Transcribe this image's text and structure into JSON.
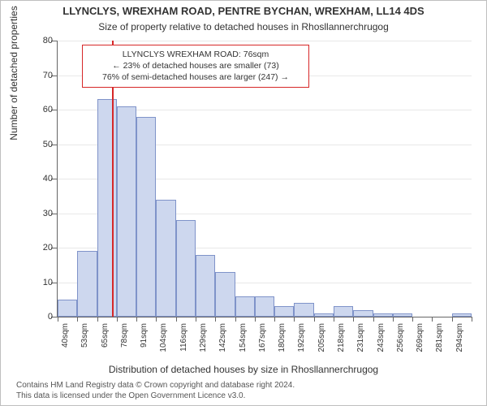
{
  "title": "LLYNCLYS, WREXHAM ROAD, PENTRE BYCHAN, WREXHAM, LL14 4DS",
  "subtitle": "Size of property relative to detached houses in Rhosllannerchrugog",
  "xlabel": "Distribution of detached houses by size in Rhosllannerchrugog",
  "ylabel": "Number of detached properties",
  "footer_line1": "Contains HM Land Registry data © Crown copyright and database right 2024.",
  "footer_line2": "This data is licensed under the Open Government Licence v3.0.",
  "chart": {
    "type": "histogram",
    "background_color": "#ffffff",
    "bar_fill": "#cdd7ee",
    "bar_edge": "#7f93c9",
    "grid_color": "#666666",
    "ref_line_color": "#d62728",
    "font_color": "#333333",
    "ylim": [
      0,
      80
    ],
    "ytick_step": 10,
    "bin_start": 40,
    "bin_width_sqm": 13,
    "n_bins": 21,
    "counts": [
      5,
      19,
      63,
      61,
      58,
      34,
      28,
      18,
      13,
      6,
      6,
      3,
      4,
      1,
      3,
      2,
      1,
      1,
      0,
      0,
      1
    ],
    "xtick_labels": [
      "40sqm",
      "53sqm",
      "65sqm",
      "78sqm",
      "91sqm",
      "104sqm",
      "116sqm",
      "129sqm",
      "142sqm",
      "154sqm",
      "167sqm",
      "180sqm",
      "192sqm",
      "205sqm",
      "218sqm",
      "231sqm",
      "243sqm",
      "256sqm",
      "269sqm",
      "281sqm",
      "294sqm"
    ],
    "ref_value_sqm": 76,
    "annotation": {
      "line1": "LLYNCLYS WREXHAM ROAD: 76sqm",
      "line2": "← 23% of detached houses are smaller (73)",
      "line3": "76% of semi-detached houses are larger (247) →"
    },
    "title_fontsize_pt": 13,
    "subtitle_fontsize_pt": 12,
    "axis_label_fontsize_pt": 12,
    "tick_fontsize_pt": 10,
    "annotation_fontsize_pt": 10.5
  }
}
